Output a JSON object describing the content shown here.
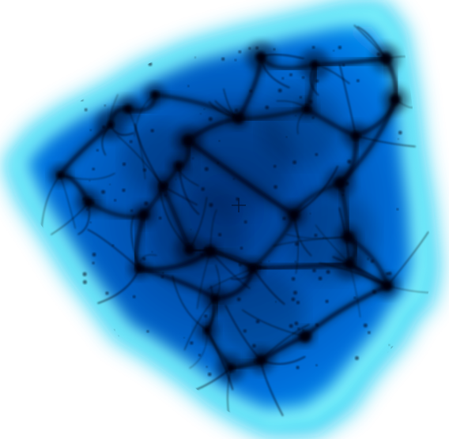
{
  "view": {
    "kind": "volume-render",
    "subject": "cosmic-web-density-field",
    "background_color": "#ffffff",
    "colormap": [
      "#000814",
      "#00122e",
      "#00306e",
      "#0060c8",
      "#0088f0",
      "#12c6f5",
      "#7af5fb"
    ],
    "halo_color": "#11c8f2",
    "edge_color": "#7df0fa",
    "interior_color": "#0064cc",
    "filament_color": "#00050f",
    "crosshair_icon": "crosshair-icon",
    "crosshair_color": "#00163a"
  }
}
